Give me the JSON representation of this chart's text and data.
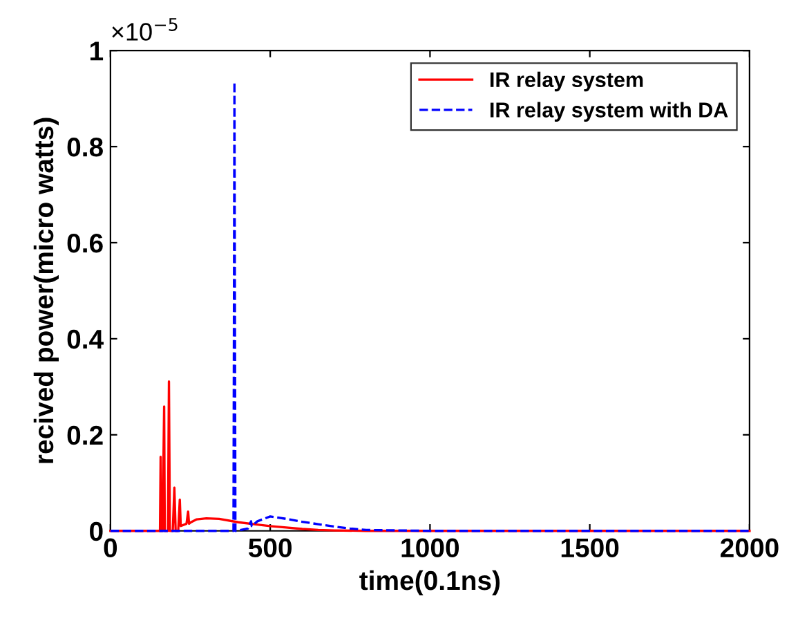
{
  "chart_data": {
    "type": "line",
    "xlabel": "time(0.1ns)",
    "ylabel": "recived power(micro watts)",
    "annotations": [
      "×10$^{−5}$"
    ],
    "xlim": [
      0,
      2000
    ],
    "xticks": [
      0,
      500,
      1000,
      1500,
      2000
    ],
    "ylim": [
      0,
      1
    ],
    "yticks": [
      0,
      0.2,
      0.4,
      0.6,
      0.8,
      1
    ],
    "grid": false,
    "legend": "top right",
    "series": [
      {
        "name": "IR relay system",
        "color": "#ff0000",
        "line_style": "solid",
        "x": [
          0,
          150,
          155,
          157,
          159,
          163,
          168,
          170,
          174,
          180,
          183,
          186,
          195,
          200,
          204,
          212,
          217,
          220,
          238,
          243,
          246,
          252,
          270,
          300,
          340,
          400,
          450,
          500,
          550,
          600,
          650,
          700,
          800,
          1000,
          1500,
          2000
        ],
        "values": [
          0,
          0,
          0,
          0.154,
          0,
          0,
          0.259,
          0,
          0,
          0,
          0.311,
          0,
          0,
          0.09,
          0,
          0,
          0.065,
          0.01,
          0.015,
          0.04,
          0.015,
          0.018,
          0.024,
          0.026,
          0.025,
          0.018,
          0.014,
          0.01,
          0.007,
          0.004,
          0.002,
          0.001,
          0,
          0,
          0,
          0
        ]
      },
      {
        "name": "IR relay system with DA",
        "color": "#0000ff",
        "line_style": "dashed",
        "x": [
          0,
          385,
          388,
          391,
          395,
          430,
          440,
          442,
          460,
          500,
          550,
          600,
          650,
          700,
          750,
          800,
          1000,
          1500,
          2000
        ],
        "values": [
          0,
          0,
          0.935,
          0,
          0,
          0.005,
          0.02,
          0.01,
          0.02,
          0.03,
          0.025,
          0.019,
          0.014,
          0.009,
          0.005,
          0.002,
          0,
          0,
          0
        ]
      }
    ]
  }
}
